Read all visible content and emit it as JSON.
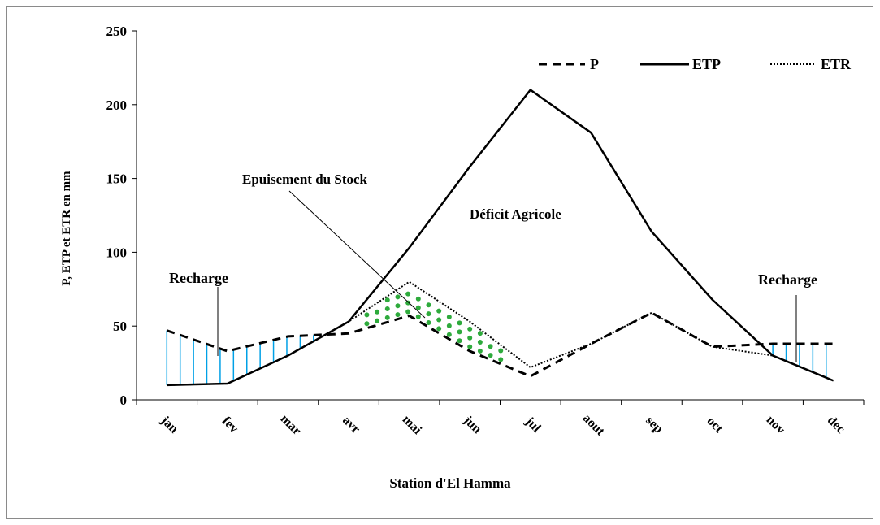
{
  "chart_data": {
    "type": "line",
    "title": "",
    "xlabel": "Station d'El Hamma",
    "ylabel": "P, ETP et ETR en mm",
    "ylim": [
      0,
      250
    ],
    "yticks": [
      0,
      50,
      100,
      150,
      200,
      250
    ],
    "categories": [
      "jan",
      "fev",
      "mar",
      "avr",
      "mai",
      "jun",
      "jul",
      "aout",
      "sep",
      "oct",
      "nov",
      "dec"
    ],
    "series": [
      {
        "name": "P",
        "style": "dashed",
        "values": [
          47,
          33,
          43,
          45,
          57,
          33,
          16,
          38,
          59,
          36,
          38,
          38
        ]
      },
      {
        "name": "ETP",
        "style": "solid",
        "values": [
          10,
          11,
          30,
          53,
          103,
          158,
          210,
          181,
          114,
          68,
          30,
          13
        ]
      },
      {
        "name": "ETR",
        "style": "dotted",
        "values": [
          10,
          11,
          30,
          53,
          80,
          53,
          22,
          38,
          59,
          36,
          30,
          13
        ]
      }
    ],
    "annotations": {
      "recharge_left": "Recharge",
      "stock": "Epuisement du Stock",
      "deficit": "Déficit Agricole",
      "recharge_right": "Recharge"
    },
    "legend_position": "top-right",
    "colors": {
      "recharge_hatch": "#00a0e6",
      "stock_fill": "#2eaa3c",
      "lines": "#000000"
    }
  }
}
